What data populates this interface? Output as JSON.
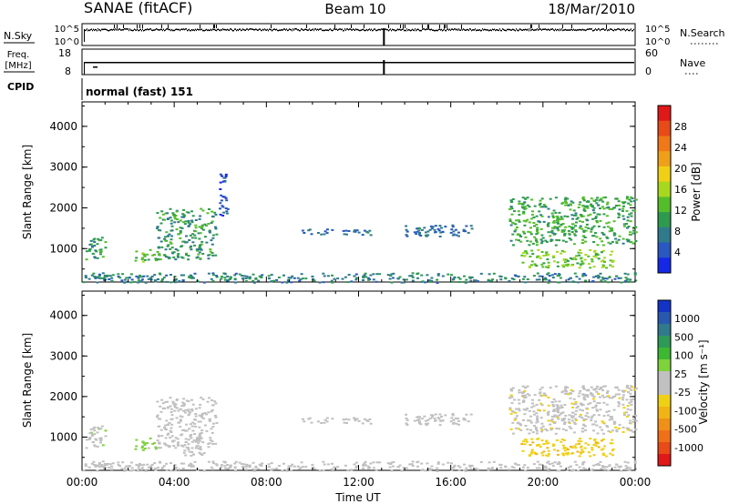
{
  "header": {
    "station": "SANAE (fitACF)",
    "beam": "Beam 10",
    "date": "18/Mar/2010"
  },
  "top_strip": {
    "nsky_label": "N.Sky",
    "nsearch_label": "N.Search",
    "left_ticks": [
      "10^5",
      "10^0"
    ],
    "right_ticks": [
      "10^5",
      "10^0"
    ],
    "freq_label_line1": "Freq.",
    "freq_label_line2": "[MHz]",
    "freq_ticks": [
      "18",
      "8"
    ],
    "nave_label": "Nave",
    "nave_ticks": [
      "60",
      "0"
    ],
    "cpid_label": "CPID",
    "cpid_value": "normal (fast) 151"
  },
  "panels": {
    "x_ticks": [
      "00:00",
      "04:00",
      "08:00",
      "12:00",
      "16:00",
      "20:00",
      "00:00"
    ],
    "x_label": "Time UT",
    "y_label": "Slant Range [km]",
    "y_ticks": [
      "1000",
      "2000",
      "3000",
      "4000"
    ],
    "power_colorbar": {
      "label": "Power [dB]",
      "ticks": [
        "4",
        "8",
        "12",
        "16",
        "20",
        "24",
        "28"
      ],
      "colors": [
        "#1428e6",
        "#2858c0",
        "#2f7a8c",
        "#2e9a50",
        "#54be2a",
        "#a8d81e",
        "#f0d014",
        "#f0a018",
        "#f07818",
        "#e84a18",
        "#e01818"
      ]
    },
    "velocity_colorbar": {
      "label": "Velocity [m s⁻¹]",
      "ticks": [
        "1000",
        "500",
        "100",
        "25",
        "-25",
        "-100",
        "-500",
        "-1000"
      ],
      "colors": [
        "#1434c8",
        "#2858b0",
        "#2f7a8c",
        "#2e9a58",
        "#3cb832",
        "#7ed23c",
        "#c0c0c0",
        "#c0c0c0",
        "#f0d014",
        "#f0b414",
        "#f09018",
        "#f07018",
        "#e84a18",
        "#e01818"
      ]
    }
  },
  "chart_data": {
    "type": "heatmap",
    "x_range_hours": [
      0,
      24
    ],
    "y_range_km": [
      180,
      4600
    ],
    "data_gap_hours": [
      13.1
    ],
    "power_blobs_dB": [
      {
        "t": [
          0.1,
          1.0
        ],
        "r": [
          700,
          1300
        ],
        "v": 10
      },
      {
        "t": [
          2.2,
          3.2
        ],
        "r": [
          700,
          1000
        ],
        "v": 12
      },
      {
        "t": [
          3.2,
          5.8
        ],
        "r": [
          750,
          2000
        ],
        "v": 10
      },
      {
        "t": [
          5.9,
          6.3
        ],
        "r": [
          1800,
          2900
        ],
        "v": 4
      },
      {
        "t": [
          9.5,
          12.5
        ],
        "r": [
          1350,
          1500
        ],
        "v": 6
      },
      {
        "t": [
          14.0,
          17.0
        ],
        "r": [
          1300,
          1600
        ],
        "v": 6
      },
      {
        "t": [
          18.5,
          24.0
        ],
        "r": [
          1100,
          2300
        ],
        "v": 11
      },
      {
        "t": [
          19.0,
          23.0
        ],
        "r": [
          550,
          1000
        ],
        "v": 14
      },
      {
        "t": [
          0.0,
          24.0
        ],
        "r": [
          180,
          420
        ],
        "v": 8
      }
    ],
    "velocity_blobs_ms": [
      {
        "t": [
          0.1,
          1.0
        ],
        "r": [
          700,
          1300
        ],
        "v": 150
      },
      {
        "t": [
          2.2,
          3.2
        ],
        "r": [
          700,
          1000
        ],
        "v": 200
      },
      {
        "t": [
          3.2,
          5.8
        ],
        "r": [
          750,
          2000
        ],
        "v": 100
      },
      {
        "t": [
          4.3,
          5.3
        ],
        "r": [
          550,
          1000
        ],
        "v": 0
      },
      {
        "t": [
          9.5,
          12.5
        ],
        "r": [
          1350,
          1500
        ],
        "v": 0
      },
      {
        "t": [
          14.0,
          17.0
        ],
        "r": [
          1300,
          1600
        ],
        "v": 0
      },
      {
        "t": [
          18.5,
          24.0
        ],
        "r": [
          1100,
          2300
        ],
        "v": -150
      },
      {
        "t": [
          19.0,
          23.0
        ],
        "r": [
          550,
          1000
        ],
        "v": -300
      },
      {
        "t": [
          0.0,
          24.0
        ],
        "r": [
          180,
          420
        ],
        "v": -50
      }
    ]
  }
}
